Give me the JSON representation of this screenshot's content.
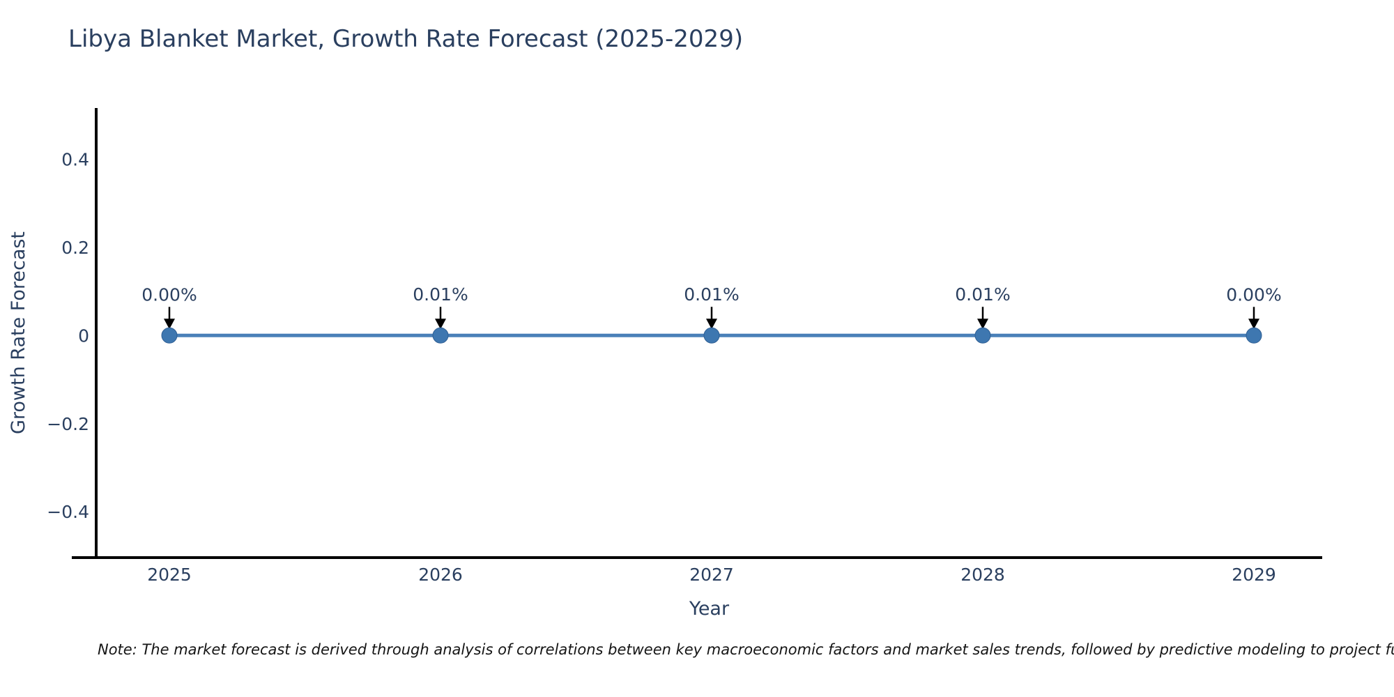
{
  "note": "Note: The market forecast is derived through analysis of correlations between key macroeconomic factors and market sales trends, followed by predictive modeling to project future sa",
  "chart_data": {
    "type": "line",
    "title": "Libya Blanket Market, Growth Rate Forecast (2025-2029)",
    "xlabel": "Year",
    "ylabel": "Growth Rate Forecast",
    "x": [
      2025,
      2026,
      2027,
      2028,
      2029
    ],
    "series": [
      {
        "name": "Growth Rate Forecast",
        "values": [
          0.0,
          0.0001,
          0.0001,
          0.0001,
          0.0
        ]
      }
    ],
    "point_labels": [
      "0.00%",
      "0.01%",
      "0.01%",
      "0.01%",
      "0.00%"
    ],
    "yticks": [
      0.4,
      0.2,
      0,
      -0.2,
      -0.4
    ],
    "ytick_labels": [
      "0.4",
      "0.2",
      "0",
      "−0.2",
      "−0.4"
    ],
    "ylim": [
      -0.504,
      0.516
    ],
    "grid": false,
    "legend": false,
    "annotation_arrows": true
  },
  "colors": {
    "line": "#4a80b8",
    "marker": "#3e77b0",
    "marker_edge": "#2f5f94",
    "arrow": "#000000",
    "axis": "#000000",
    "text": "#2a3f5f",
    "note_text": "#151515",
    "background": "#ffffff"
  }
}
